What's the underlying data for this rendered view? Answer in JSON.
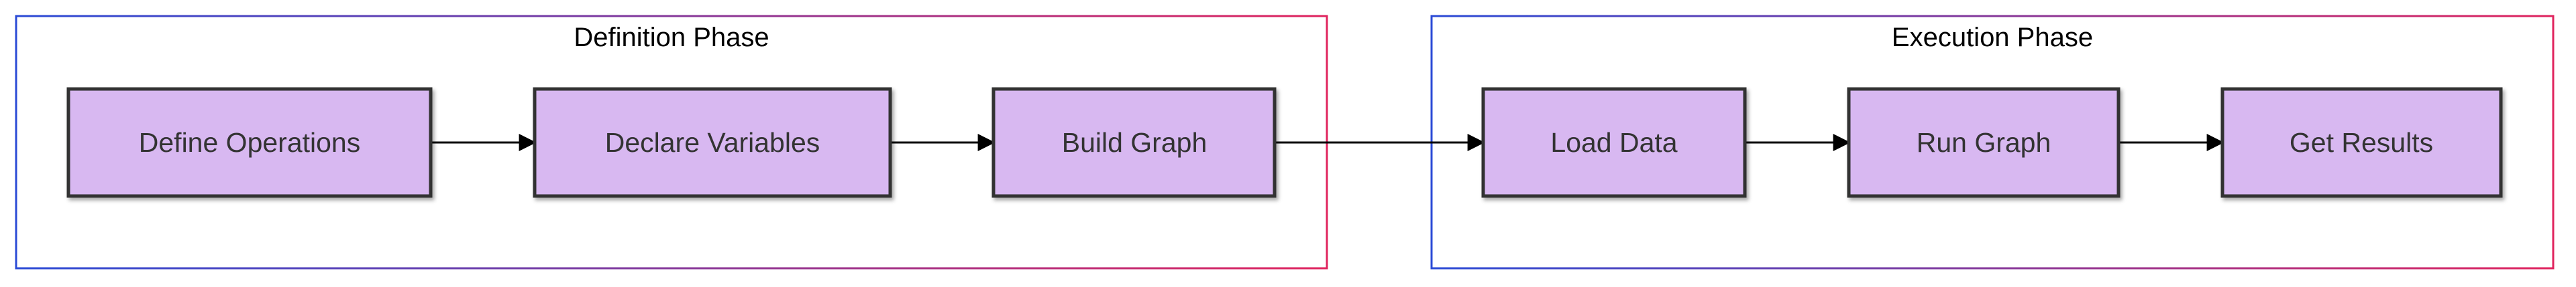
{
  "diagram": {
    "phases": [
      {
        "id": "definition",
        "title": "Definition Phase"
      },
      {
        "id": "execution",
        "title": "Execution Phase"
      }
    ],
    "nodes": [
      {
        "id": "define-operations",
        "label": "Define Operations",
        "phase": "definition"
      },
      {
        "id": "declare-variables",
        "label": "Declare Variables",
        "phase": "definition"
      },
      {
        "id": "build-graph",
        "label": "Build Graph",
        "phase": "definition"
      },
      {
        "id": "load-data",
        "label": "Load Data",
        "phase": "execution"
      },
      {
        "id": "run-graph",
        "label": "Run Graph",
        "phase": "execution"
      },
      {
        "id": "get-results",
        "label": "Get Results",
        "phase": "execution"
      }
    ],
    "edges": [
      {
        "from": "define-operations",
        "to": "declare-variables"
      },
      {
        "from": "declare-variables",
        "to": "build-graph"
      },
      {
        "from": "build-graph",
        "to": "load-data"
      },
      {
        "from": "load-data",
        "to": "run-graph"
      },
      {
        "from": "run-graph",
        "to": "get-results"
      }
    ],
    "colors": {
      "node_fill": "#d8b8f1",
      "node_stroke": "#333333",
      "edge": "#000000",
      "phase_border_start": "#2b4bd6",
      "phase_border_end": "#e0245e"
    }
  }
}
